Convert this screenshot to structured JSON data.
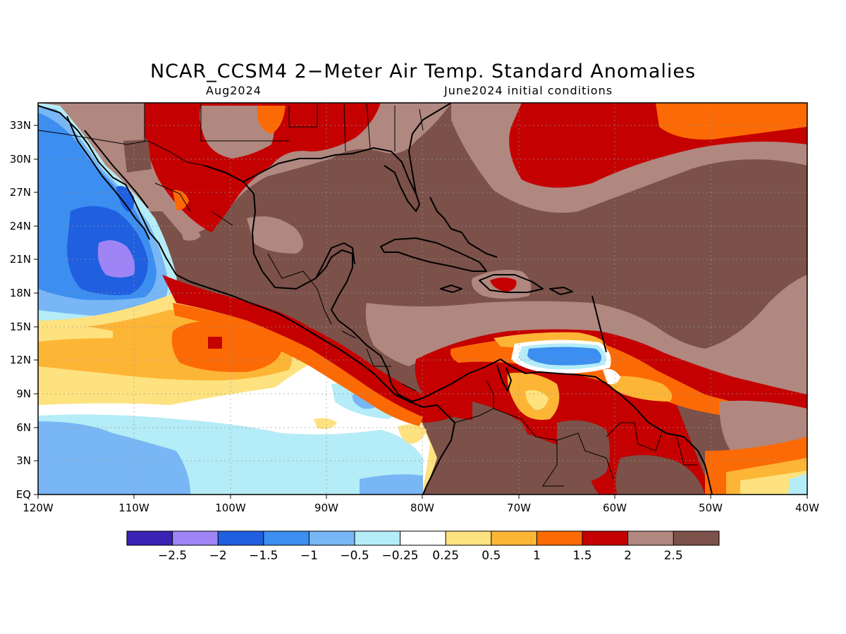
{
  "title": "NCAR_CCSM4 2−Meter Air Temp. Standard Anomalies",
  "subtitle_left": "Aug2024",
  "subtitle_right": "June2024 initial conditions",
  "map": {
    "lon_range": [
      -120,
      -40
    ],
    "lat_range": [
      0,
      35
    ],
    "x_ticks": [
      "120W",
      "110W",
      "100W",
      "90W",
      "80W",
      "70W",
      "60W",
      "50W",
      "40W"
    ],
    "y_ticks": [
      "EQ",
      "3N",
      "6N",
      "9N",
      "12N",
      "15N",
      "18N",
      "21N",
      "24N",
      "27N",
      "30N",
      "33N"
    ],
    "gridlines": "dotted"
  },
  "colorbar": {
    "labels": [
      "−2.5",
      "−2",
      "−1.5",
      "−1",
      "−0.5",
      "−0.25",
      "0.25",
      "0.5",
      "1",
      "1.5",
      "2",
      "2.5"
    ],
    "colors": [
      "#3a22b5",
      "#9f84f5",
      "#1f5fe0",
      "#3c8ef0",
      "#78b6f5",
      "#b4ecf7",
      "#ffffff",
      "#fde27f",
      "#fdb536",
      "#fc6a05",
      "#c40000",
      "#b08880",
      "#7b5149"
    ]
  },
  "colors": {
    "neg_strong": "#3a22b5",
    "neg_lavender": "#9f84f5",
    "neg_blue": "#1f5fe0",
    "neg_mid": "#3c8ef0",
    "neg_light": "#78b6f5",
    "neg_pale": "#b4ecf7",
    "neutral": "#ffffff",
    "pos_yellow": "#fde27f",
    "pos_orange_light": "#fdb536",
    "pos_orange": "#fc6a05",
    "pos_red": "#c40000",
    "pos_tan": "#b08880",
    "pos_brown": "#7b5149"
  }
}
